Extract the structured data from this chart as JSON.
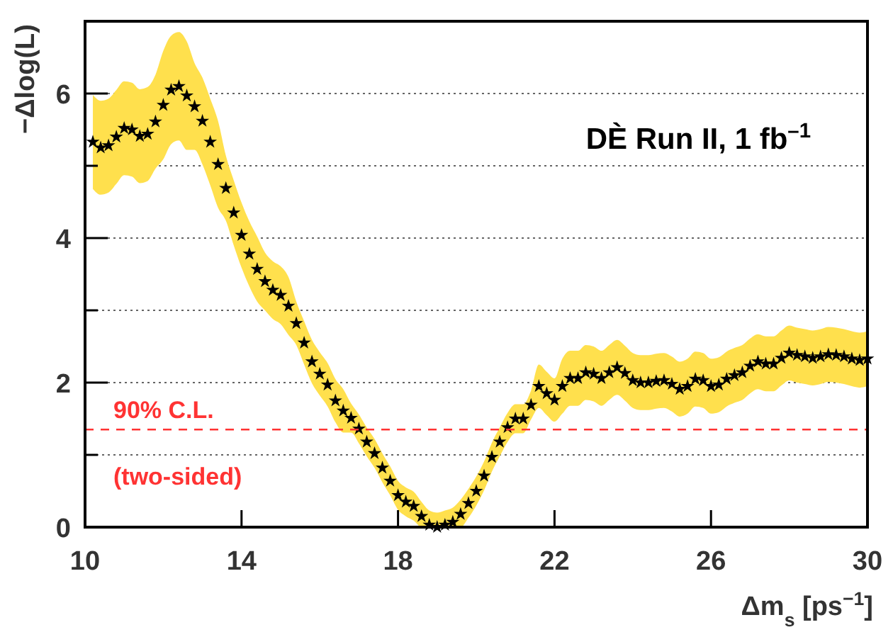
{
  "chart_data": {
    "type": "scatter",
    "xlabel": "Δm$_{s}$ [ps$^{−1}$]",
    "ylabel": "−Δlog(L)",
    "annotations": [
      "DÈ Run II, 1 fb$^{–1}$"
    ],
    "xlim": [
      10,
      30
    ],
    "xticks": [
      10,
      14,
      18,
      22,
      26,
      30
    ],
    "ylim": [
      0,
      7
    ],
    "yticks": [
      0,
      {
        "value": 1,
        "label": null
      },
      2,
      {
        "value": 3,
        "label": null
      },
      4,
      {
        "value": 5,
        "label": null
      },
      6
    ],
    "grid": "y",
    "marker": "star",
    "ref_lines": [
      {
        "axis": "y",
        "value": 1.35,
        "label": "90% C.L.\n(two-sided)",
        "color": "#ff3333",
        "line_style": "dashed"
      }
    ],
    "series": [
      {
        "color": "#000000",
        "x": [
          10.2,
          10.4,
          10.6,
          10.8,
          11.0,
          11.2,
          11.4,
          11.6,
          11.8,
          12.0,
          12.2,
          12.4,
          12.6,
          12.8,
          13.0,
          13.2,
          13.4,
          13.6,
          13.8,
          14.0,
          14.2,
          14.4,
          14.6,
          14.8,
          15.0,
          15.2,
          15.4,
          15.6,
          15.8,
          16.0,
          16.2,
          16.4,
          16.6,
          16.8,
          17.0,
          17.2,
          17.4,
          17.6,
          17.8,
          18.0,
          18.2,
          18.4,
          18.6,
          18.8,
          19.0,
          19.2,
          19.4,
          19.6,
          19.8,
          20.0,
          20.2,
          20.4,
          20.6,
          20.8,
          21.0,
          21.2,
          21.4,
          21.6,
          21.8,
          22.0,
          22.2,
          22.4,
          22.6,
          22.8,
          23.0,
          23.2,
          23.4,
          23.6,
          23.8,
          24.0,
          24.2,
          24.4,
          24.6,
          24.8,
          25.0,
          25.2,
          25.4,
          25.6,
          25.8,
          26.0,
          26.2,
          26.4,
          26.6,
          26.8,
          27.0,
          27.2,
          27.4,
          27.6,
          27.8,
          28.0,
          28.2,
          28.4,
          28.6,
          28.8,
          29.0,
          29.2,
          29.4,
          29.6,
          29.8,
          30.0
        ],
        "values": [
          5.33,
          5.25,
          5.28,
          5.4,
          5.52,
          5.5,
          5.41,
          5.44,
          5.61,
          5.84,
          6.05,
          6.1,
          5.97,
          5.82,
          5.62,
          5.33,
          5.02,
          4.69,
          4.35,
          4.04,
          3.78,
          3.57,
          3.4,
          3.28,
          3.21,
          3.06,
          2.82,
          2.55,
          2.29,
          2.12,
          1.97,
          1.75,
          1.61,
          1.51,
          1.36,
          1.18,
          1.02,
          0.82,
          0.64,
          0.44,
          0.35,
          0.29,
          0.15,
          0.03,
          0,
          0.03,
          0.07,
          0.18,
          0.33,
          0.5,
          0.71,
          0.97,
          1.18,
          1.38,
          1.5,
          1.5,
          1.69,
          1.95,
          1.85,
          1.76,
          1.95,
          2.06,
          2.06,
          2.14,
          2.12,
          2.06,
          2.14,
          2.21,
          2.13,
          2.03,
          2.0,
          2.0,
          2.02,
          2.03,
          1.98,
          1.91,
          1.95,
          2.05,
          2.03,
          1.95,
          1.97,
          2.05,
          2.1,
          2.14,
          2.23,
          2.29,
          2.26,
          2.26,
          2.34,
          2.41,
          2.38,
          2.36,
          2.34,
          2.36,
          2.39,
          2.38,
          2.36,
          2.33,
          2.31,
          2.33
        ],
        "upper": [
          5.98,
          5.9,
          5.93,
          6.05,
          6.17,
          6.15,
          6.06,
          6.09,
          6.26,
          6.59,
          6.8,
          6.85,
          6.72,
          6.42,
          6.22,
          5.93,
          5.62,
          5.14,
          4.8,
          4.49,
          4.23,
          4.02,
          3.8,
          3.68,
          3.61,
          3.46,
          3.12,
          2.85,
          2.59,
          2.42,
          2.27,
          2.05,
          1.91,
          1.71,
          1.56,
          1.38,
          1.22,
          1.02,
          0.84,
          0.64,
          0.55,
          0.49,
          0.35,
          0.23,
          0.2,
          0.23,
          0.27,
          0.38,
          0.53,
          0.7,
          0.91,
          1.17,
          1.38,
          1.58,
          1.7,
          1.7,
          1.89,
          2.25,
          2.15,
          2.06,
          2.33,
          2.44,
          2.44,
          2.52,
          2.5,
          2.44,
          2.52,
          2.59,
          2.51,
          2.41,
          2.38,
          2.38,
          2.4,
          2.41,
          2.36,
          2.29,
          2.33,
          2.43,
          2.41,
          2.33,
          2.35,
          2.43,
          2.48,
          2.52,
          2.61,
          2.67,
          2.64,
          2.64,
          2.72,
          2.79,
          2.76,
          2.74,
          2.72,
          2.74,
          2.77,
          2.76,
          2.74,
          2.71,
          2.69,
          2.71
        ],
        "lower": [
          4.68,
          4.6,
          4.63,
          4.75,
          4.87,
          4.85,
          4.76,
          4.79,
          4.96,
          5.09,
          5.3,
          5.35,
          5.22,
          5.22,
          5.02,
          4.73,
          4.42,
          4.24,
          3.9,
          3.59,
          3.33,
          3.12,
          3.0,
          2.88,
          2.81,
          2.66,
          2.52,
          2.25,
          1.99,
          1.82,
          1.67,
          1.45,
          1.31,
          1.31,
          1.16,
          0.98,
          0.82,
          0.62,
          0.44,
          0.24,
          0.15,
          0.09,
          0,
          0,
          0,
          0,
          0,
          0,
          0.13,
          0.3,
          0.51,
          0.77,
          0.98,
          1.18,
          1.3,
          1.3,
          1.49,
          1.65,
          1.55,
          1.46,
          1.57,
          1.68,
          1.68,
          1.76,
          1.74,
          1.68,
          1.76,
          1.83,
          1.75,
          1.65,
          1.62,
          1.62,
          1.64,
          1.65,
          1.6,
          1.53,
          1.57,
          1.67,
          1.65,
          1.57,
          1.59,
          1.67,
          1.72,
          1.76,
          1.85,
          1.91,
          1.88,
          1.88,
          1.96,
          2.03,
          2.0,
          1.98,
          1.96,
          1.98,
          2.01,
          2.0,
          1.98,
          1.95,
          1.93,
          1.95
        ]
      }
    ]
  }
}
